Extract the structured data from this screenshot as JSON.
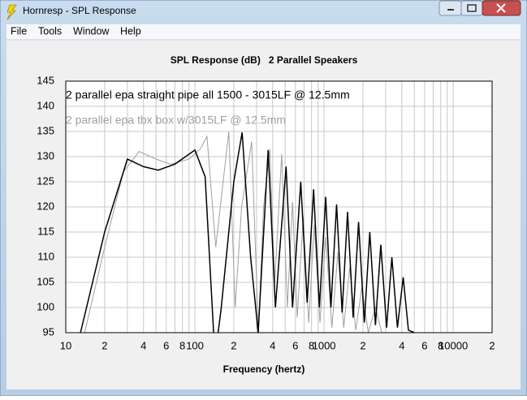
{
  "window": {
    "title": "Hornresp - SPL Response",
    "menu": [
      "File",
      "Tools",
      "Window",
      "Help"
    ]
  },
  "chart_data": {
    "type": "line",
    "title": "SPL Response (dB)   2 Parallel Speakers",
    "xlabel": "Frequency (hertz)",
    "log_x": true,
    "grid": true,
    "xlim": [
      10,
      20000
    ],
    "xticks": [
      10,
      {
        "value": 20,
        "label": "2"
      },
      {
        "value": 40,
        "label": "4"
      },
      {
        "value": 60,
        "label": "6"
      },
      {
        "value": 80,
        "label": "8"
      },
      100,
      {
        "value": 200,
        "label": "2"
      },
      {
        "value": 400,
        "label": "4"
      },
      {
        "value": 600,
        "label": "6"
      },
      {
        "value": 800,
        "label": "8"
      },
      1000,
      {
        "value": 2000,
        "label": "2"
      },
      {
        "value": 4000,
        "label": "4"
      },
      {
        "value": 6000,
        "label": "6"
      },
      {
        "value": 8000,
        "label": "8"
      },
      10000,
      {
        "value": 20000,
        "label": "2"
      }
    ],
    "xgrid": [
      30,
      50,
      70,
      90,
      300,
      500,
      700,
      900,
      3000,
      5000,
      7000,
      9000
    ],
    "ylim": [
      95,
      145
    ],
    "yticks": [
      95,
      100,
      105,
      110,
      115,
      120,
      125,
      130,
      135,
      140,
      145
    ],
    "series": [
      {
        "name": "2 parallel epa straight pipe all 1500 - 3015LF @ 12.5mm",
        "color": "#000000",
        "x": [
          13,
          20,
          30,
          40,
          52,
          70,
          100,
          120,
          143,
          160,
          200,
          232,
          270,
          309,
          369,
          420,
          508,
          570,
          660,
          740,
          830,
          920,
          1030,
          1130,
          1250,
          1380,
          1520,
          1680,
          1850,
          2050,
          2260,
          2500,
          2750,
          3050,
          3350,
          3700,
          4100,
          4500,
          5000
        ],
        "values": [
          95,
          115,
          129.5,
          128,
          127.3,
          128.5,
          131.3,
          126,
          90,
          100,
          125,
          134.8,
          110,
          95,
          131.3,
          100,
          128,
          100,
          125,
          101,
          123.5,
          100,
          122,
          100,
          120.5,
          99,
          119,
          98,
          117,
          97,
          115,
          96.5,
          112.5,
          96,
          110,
          96,
          106,
          95.5,
          95
        ]
      },
      {
        "name": "2 parallel epa tbx box w/3015LF @ 12.5mm",
        "color": "#a0a0a0",
        "x": [
          14,
          20,
          28,
          37,
          50,
          65,
          90,
          110,
          124,
          145,
          183,
          205,
          230,
          275,
          310,
          340,
          380,
          415,
          470,
          520,
          570,
          620,
          690,
          760,
          840,
          930,
          1030,
          1150,
          1280,
          1420,
          1580,
          1760,
          1960,
          2200,
          2500,
          2800
        ],
        "values": [
          95,
          112,
          127,
          131,
          129.5,
          128.5,
          129.5,
          131.5,
          134,
          112,
          135,
          100,
          120,
          133,
          95,
          120,
          131.5,
          105,
          130.5,
          100,
          121,
          98,
          118,
          97,
          116.5,
          97,
          114,
          96,
          111,
          96,
          108,
          95.5,
          104,
          95,
          100,
          95
        ]
      }
    ]
  }
}
